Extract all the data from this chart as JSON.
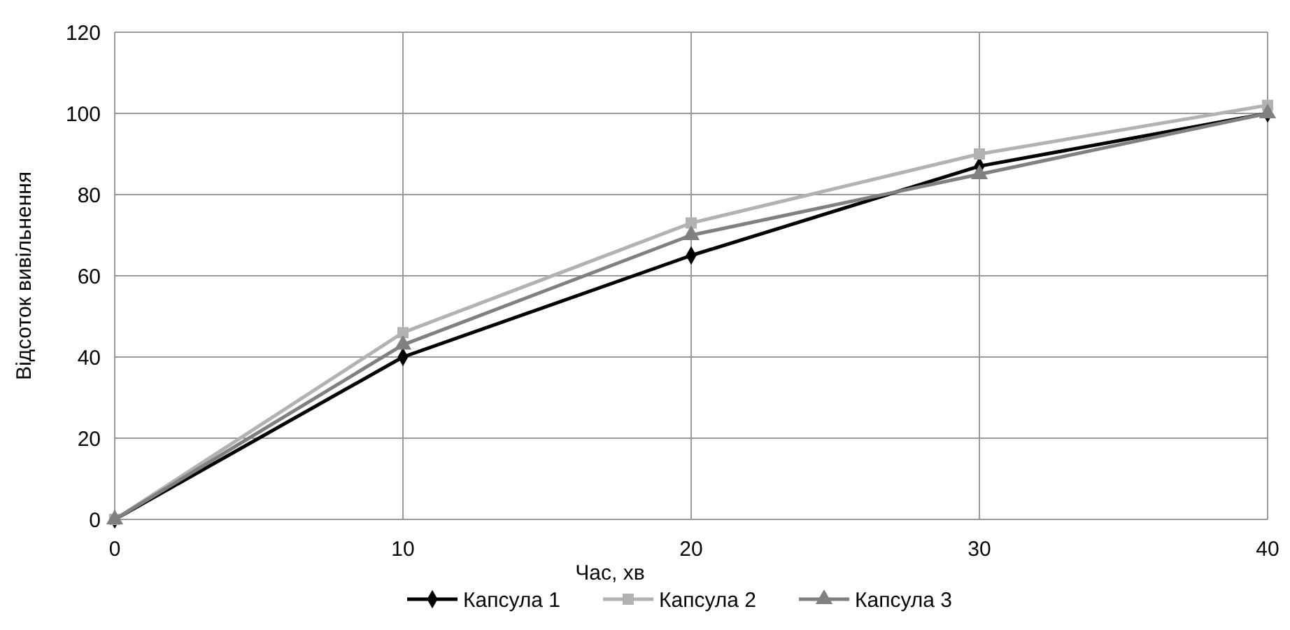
{
  "chart_data": {
    "type": "line",
    "xlabel": "Час, хв",
    "ylabel": "Відсоток вивільнення",
    "x": [
      0,
      10,
      20,
      30,
      40
    ],
    "series": [
      {
        "name": "Капсула 1",
        "color": "#000000",
        "marker": "diamond",
        "values": [
          0,
          40,
          65,
          87,
          100
        ]
      },
      {
        "name": "Капсула 2",
        "color": "#b2b2b2",
        "marker": "square",
        "values": [
          0,
          46,
          73,
          90,
          102
        ]
      },
      {
        "name": "Капсула 3",
        "color": "#808080",
        "marker": "triangle",
        "values": [
          0,
          43,
          70,
          85,
          100
        ]
      }
    ],
    "xlim": [
      0,
      40
    ],
    "xticks": [
      0,
      10,
      20,
      30,
      40
    ],
    "ylim": [
      0,
      120
    ],
    "yticks": [
      0,
      20,
      40,
      60,
      80,
      100,
      120
    ],
    "grid": true,
    "legend": "bottom",
    "line_style": "solid"
  }
}
